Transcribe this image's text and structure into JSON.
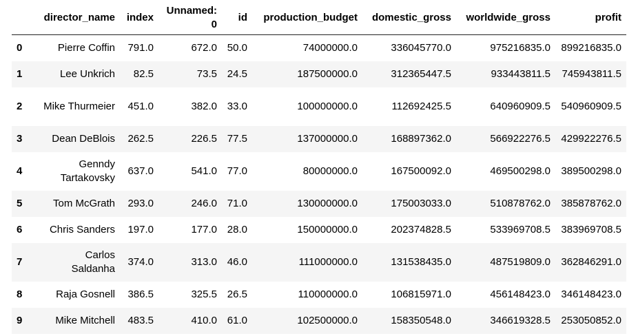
{
  "columns": [
    "director_name",
    "index",
    "Unnamed: 0",
    "id",
    "production_budget",
    "domestic_gross",
    "worldwide_gross",
    "profit"
  ],
  "rows": [
    {
      "idx": "0",
      "director_name": "Pierre Coffin",
      "index": "791.0",
      "unnamed": "672.0",
      "id": "50.0",
      "production_budget": "74000000.0",
      "domestic_gross": "336045770.0",
      "worldwide_gross": "975216835.0",
      "profit": "899216835.0"
    },
    {
      "idx": "1",
      "director_name": "Lee Unkrich",
      "index": "82.5",
      "unnamed": "73.5",
      "id": "24.5",
      "production_budget": "187500000.0",
      "domestic_gross": "312365447.5",
      "worldwide_gross": "933443811.5",
      "profit": "745943811.5"
    },
    {
      "idx": "2",
      "director_name": "Mike Thurmeier",
      "index": "451.0",
      "unnamed": "382.0",
      "id": "33.0",
      "production_budget": "100000000.0",
      "domestic_gross": "112692425.5",
      "worldwide_gross": "640960909.5",
      "profit": "540960909.5"
    },
    {
      "idx": "3",
      "director_name": "Dean DeBlois",
      "index": "262.5",
      "unnamed": "226.5",
      "id": "77.5",
      "production_budget": "137000000.0",
      "domestic_gross": "168897362.0",
      "worldwide_gross": "566922276.5",
      "profit": "429922276.5"
    },
    {
      "idx": "4",
      "director_name": "Genndy Tartakovsky",
      "index": "637.0",
      "unnamed": "541.0",
      "id": "77.0",
      "production_budget": "80000000.0",
      "domestic_gross": "167500092.0",
      "worldwide_gross": "469500298.0",
      "profit": "389500298.0"
    },
    {
      "idx": "5",
      "director_name": "Tom McGrath",
      "index": "293.0",
      "unnamed": "246.0",
      "id": "71.0",
      "production_budget": "130000000.0",
      "domestic_gross": "175003033.0",
      "worldwide_gross": "510878762.0",
      "profit": "385878762.0"
    },
    {
      "idx": "6",
      "director_name": "Chris Sanders",
      "index": "197.0",
      "unnamed": "177.0",
      "id": "28.0",
      "production_budget": "150000000.0",
      "domestic_gross": "202374828.5",
      "worldwide_gross": "533969708.5",
      "profit": "383969708.5"
    },
    {
      "idx": "7",
      "director_name": "Carlos Saldanha",
      "index": "374.0",
      "unnamed": "313.0",
      "id": "46.0",
      "production_budget": "111000000.0",
      "domestic_gross": "131538435.0",
      "worldwide_gross": "487519809.0",
      "profit": "362846291.0"
    },
    {
      "idx": "8",
      "director_name": "Raja Gosnell",
      "index": "386.5",
      "unnamed": "325.5",
      "id": "26.5",
      "production_budget": "110000000.0",
      "domestic_gross": "106815971.0",
      "worldwide_gross": "456148423.0",
      "profit": "346148423.0"
    },
    {
      "idx": "9",
      "director_name": "Mike Mitchell",
      "index": "483.5",
      "unnamed": "410.0",
      "id": "61.0",
      "production_budget": "102500000.0",
      "domestic_gross": "158350548.0",
      "worldwide_gross": "346619328.5",
      "profit": "253050852.0"
    }
  ]
}
